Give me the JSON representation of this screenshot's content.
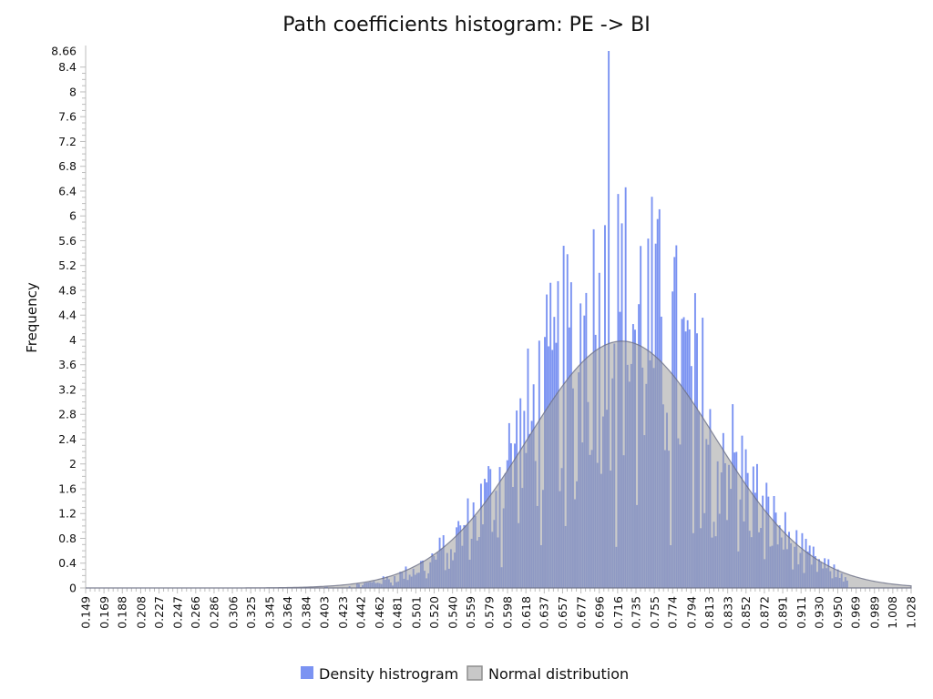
{
  "chart_data": {
    "type": "bar",
    "title": "Path coefficients histogram: PE -> BI",
    "ylabel": "Frequency",
    "xlabel": "",
    "xlim": [
      0.149,
      1.028
    ],
    "ylim": [
      0,
      8.66
    ],
    "y_ticks": [
      "0",
      "0.4",
      "0.8",
      "1.2",
      "1.6",
      "2",
      "2.4",
      "2.8",
      "3.2",
      "3.6",
      "4",
      "4.4",
      "4.8",
      "5.2",
      "5.6",
      "6",
      "6.4",
      "6.8",
      "7.2",
      "7.6",
      "8",
      "8.4",
      "8.66"
    ],
    "x_ticks": [
      "0.149",
      "0.169",
      "0.188",
      "0.208",
      "0.227",
      "0.247",
      "0.266",
      "0.286",
      "0.306",
      "0.325",
      "0.345",
      "0.364",
      "0.384",
      "0.403",
      "0.423",
      "0.442",
      "0.462",
      "0.481",
      "0.501",
      "0.520",
      "0.540",
      "0.559",
      "0.579",
      "0.598",
      "0.618",
      "0.637",
      "0.657",
      "0.677",
      "0.696",
      "0.716",
      "0.735",
      "0.755",
      "0.774",
      "0.794",
      "0.813",
      "0.833",
      "0.852",
      "0.872",
      "0.891",
      "0.911",
      "0.930",
      "0.950",
      "0.969",
      "0.989",
      "1.008",
      "1.028"
    ],
    "histogram_peak": {
      "x": 0.706,
      "y": 8.66
    },
    "series": [
      {
        "name": "Density histrogram",
        "color": "#7b93f2",
        "kind": "histogram",
        "bin_width": 0.002
      },
      {
        "name": "Normal distribution",
        "color": "#9e9e9e",
        "kind": "area",
        "mean": 0.72,
        "sd": 0.1,
        "peak": 3.98
      }
    ],
    "legend": {
      "position": "bottom-center",
      "entries": [
        "Density histrogram",
        "Normal distribution"
      ]
    },
    "grid": false
  }
}
